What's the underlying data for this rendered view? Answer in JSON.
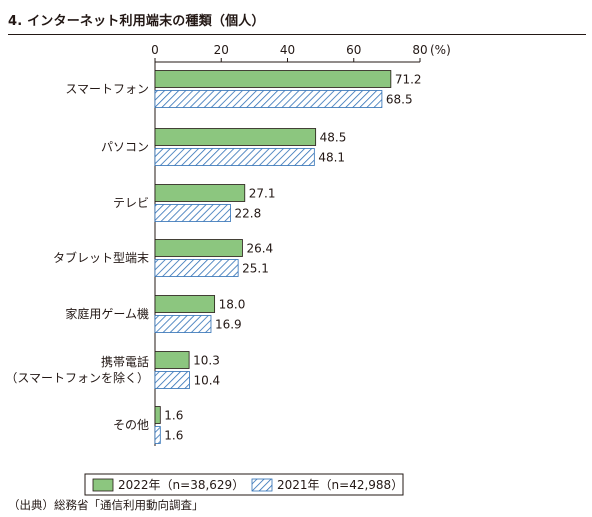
{
  "chart_data": {
    "type": "bar",
    "orientation": "horizontal",
    "title": "4. インターネット利用端末の種類（個人）",
    "source": "（出典）総務省「通信利用動向調査」",
    "unit_label": "(%)",
    "xlim": [
      0,
      80
    ],
    "xticks": [
      0,
      20,
      40,
      60,
      80
    ],
    "grid": false,
    "legend_position": "bottom",
    "categories": [
      [
        "スマートフォン"
      ],
      [
        "パソコン"
      ],
      [
        "テレビ"
      ],
      [
        "タブレット型端末"
      ],
      [
        "家庭用ゲーム機"
      ],
      [
        "携帯電話",
        "（スマートフォンを除く）"
      ],
      [
        "その他"
      ]
    ],
    "series": [
      {
        "name": "2022年（n=38,629）",
        "values": [
          71.2,
          48.5,
          27.1,
          26.4,
          18.0,
          10.3,
          1.6
        ],
        "value_labels": [
          "71.2",
          "48.5",
          "27.1",
          "26.4",
          "18.0",
          "10.3",
          "1.6"
        ],
        "fill": "#8cc67f",
        "stroke": "#231815",
        "pattern": "solid"
      },
      {
        "name": "2021年（n=42,988）",
        "values": [
          68.5,
          48.1,
          22.8,
          25.1,
          16.9,
          10.4,
          1.6
        ],
        "value_labels": [
          "68.5",
          "48.1",
          "22.8",
          "25.1",
          "16.9",
          "10.4",
          "1.6"
        ],
        "fill": "#ffffff",
        "stroke": "#2e6fb5",
        "pattern": "diagonal-hatch"
      }
    ]
  }
}
